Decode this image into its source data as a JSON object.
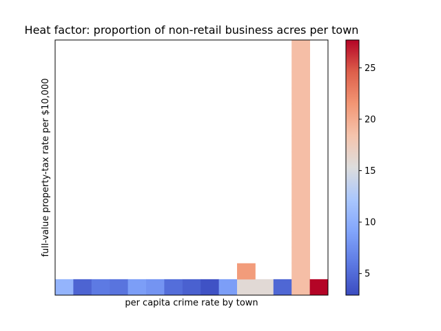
{
  "chart_data": {
    "type": "heatmap",
    "title": "Heat factor: proportion of non-retail business acres per town",
    "xlabel": "per capita crime rate by town",
    "ylabel": "full-value property-tax rate per $10,000",
    "colormap": "coolwarm",
    "color_range": [
      2.9,
      27.7
    ],
    "colorbar_ticks": [
      5,
      10,
      15,
      20,
      25
    ],
    "x_ticks_visible": false,
    "y_ticks_visible": false,
    "n_columns": 15,
    "n_rows": 16,
    "cells": [
      {
        "col": 0,
        "row": 0,
        "value": 10.5
      },
      {
        "col": 1,
        "row": 0,
        "value": 4.5
      },
      {
        "col": 2,
        "row": 0,
        "value": 6.0
      },
      {
        "col": 3,
        "row": 0,
        "value": 5.6
      },
      {
        "col": 4,
        "row": 0,
        "value": 8.6
      },
      {
        "col": 5,
        "row": 0,
        "value": 7.9
      },
      {
        "col": 6,
        "row": 0,
        "value": 5.2
      },
      {
        "col": 7,
        "row": 0,
        "value": 4.3
      },
      {
        "col": 8,
        "row": 0,
        "value": 3.3
      },
      {
        "col": 9,
        "row": 0,
        "value": 8.6
      },
      {
        "col": 10,
        "row": 0,
        "value": 15.8
      },
      {
        "col": 10,
        "row": 1,
        "value": 21.1
      },
      {
        "col": 11,
        "row": 0,
        "value": 15.8
      },
      {
        "col": 12,
        "row": 0,
        "value": 4.7
      },
      {
        "col": 13,
        "row": 0,
        "value": 18.8
      },
      {
        "col": 13,
        "row": 1,
        "value": 18.8
      },
      {
        "col": 13,
        "row": 2,
        "value": 18.8
      },
      {
        "col": 13,
        "row": 3,
        "value": 18.8
      },
      {
        "col": 13,
        "row": 4,
        "value": 18.8
      },
      {
        "col": 13,
        "row": 5,
        "value": 18.8
      },
      {
        "col": 13,
        "row": 6,
        "value": 18.8
      },
      {
        "col": 13,
        "row": 7,
        "value": 18.8
      },
      {
        "col": 13,
        "row": 8,
        "value": 18.8
      },
      {
        "col": 13,
        "row": 9,
        "value": 18.8
      },
      {
        "col": 13,
        "row": 10,
        "value": 18.8
      },
      {
        "col": 13,
        "row": 11,
        "value": 18.8
      },
      {
        "col": 13,
        "row": 12,
        "value": 18.8
      },
      {
        "col": 13,
        "row": 13,
        "value": 18.8
      },
      {
        "col": 13,
        "row": 14,
        "value": 18.8
      },
      {
        "col": 13,
        "row": 15,
        "value": 18.8
      },
      {
        "col": 14,
        "row": 0,
        "value": 27.7
      }
    ]
  }
}
